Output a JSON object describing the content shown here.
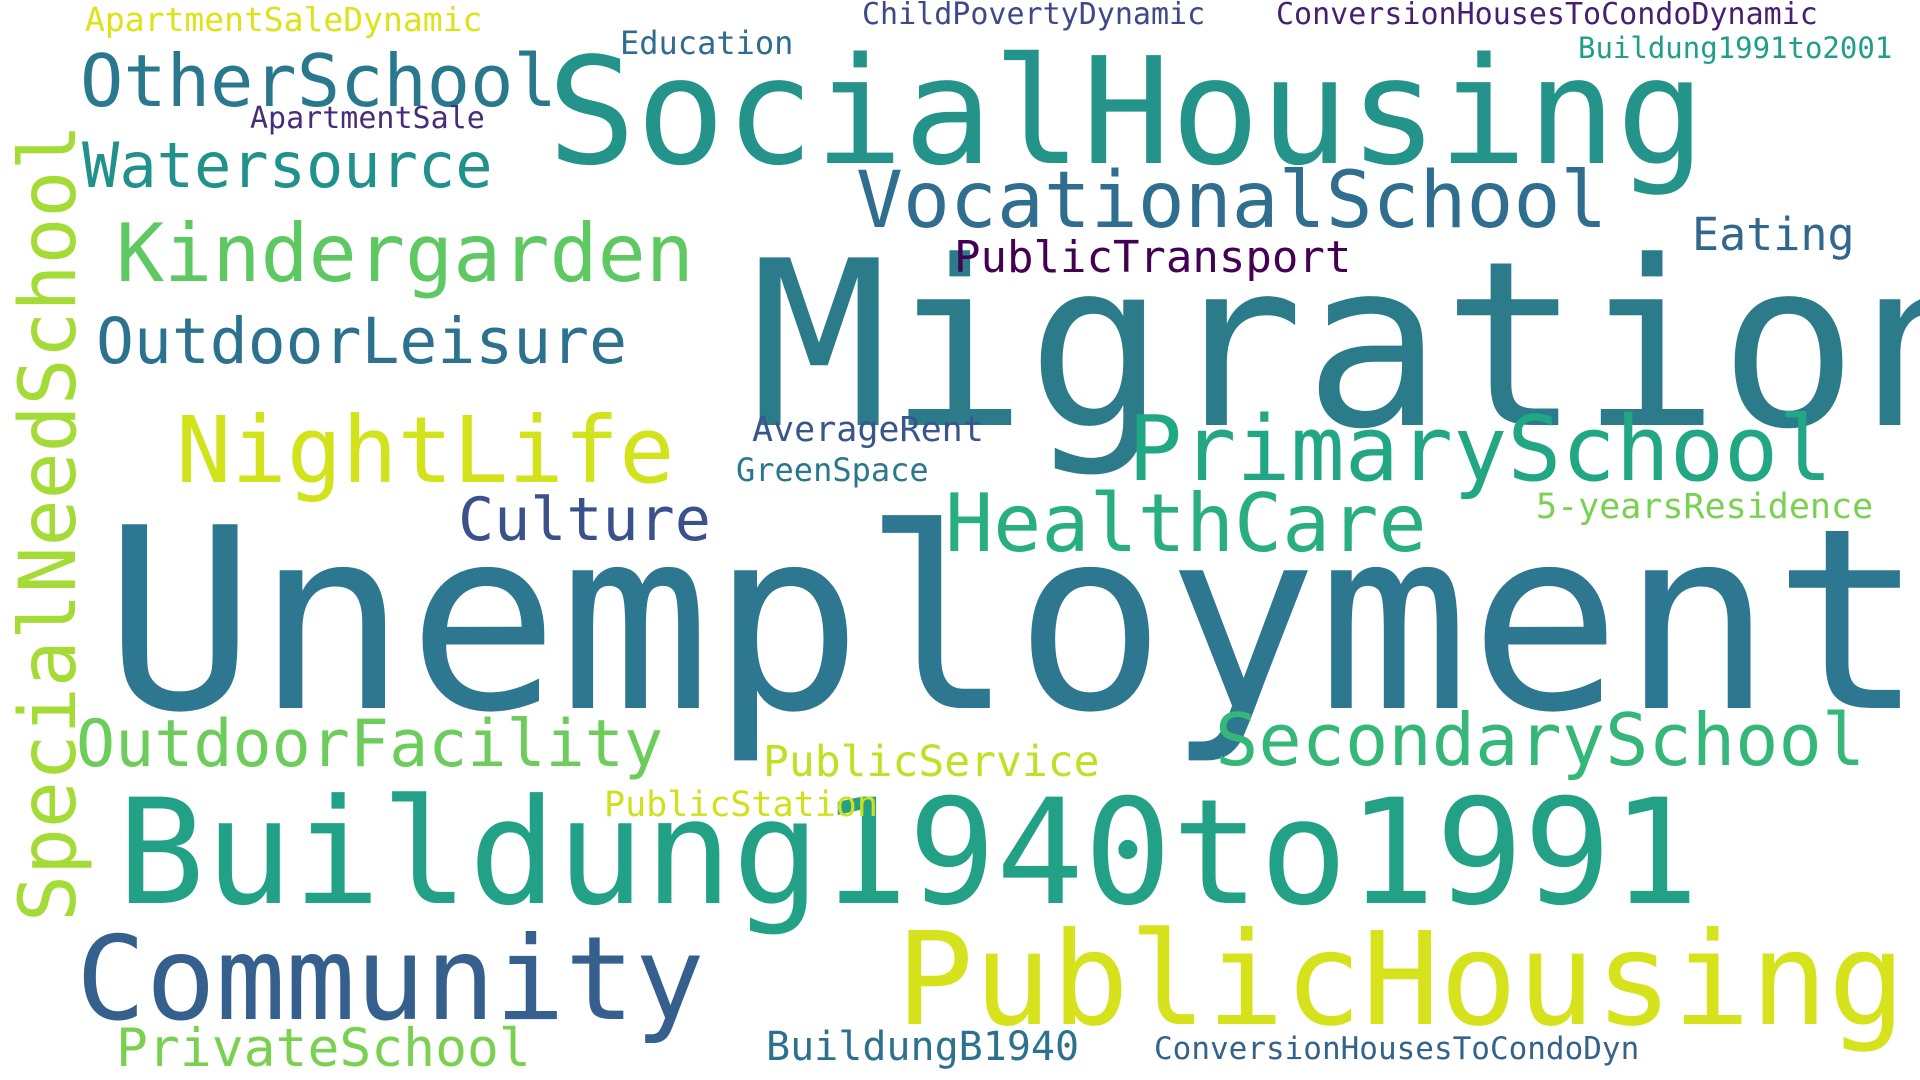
{
  "palette": {
    "migration": "#2c7b8b",
    "unemployment": "#2d7790",
    "socialhousing": "#24938a",
    "buildung1940": "#22a187",
    "publichousing": "#d6e31c",
    "community": "#35608d",
    "vocational": "#2f6e8e",
    "primaryschool": "#22a785",
    "healthcare": "#28ae80",
    "secondary": "#35b779",
    "kindergarden": "#5ec962",
    "outdoorleisure": "#2c728e",
    "nightlife": "#d2e21b",
    "outdoorfacility": "#6ccd5a",
    "special": "#a5db36",
    "otherschool": "#2a788e",
    "watersource": "#21918c",
    "privateschool": "#7ad151",
    "culture": "#3b518b",
    "publictransport": "#440154",
    "eating": "#31668e",
    "publicservice": "#c2df23",
    "publicstation": "#d0e11c",
    "buildungB1940": "#2c728e",
    "convdyn": "#33638d",
    "averagerent": "#39568c",
    "greenspace": "#2a788e",
    "fiveyears": "#7ad151",
    "apartmentsaledyn": "#dde318",
    "apartmentsale": "#472c7a",
    "childpoverty": "#3e4989",
    "convhousesdyn": "#481f70",
    "education": "#2f6c8e",
    "buildung1991": "#1f9f88"
  },
  "words": {
    "migration": "Migration",
    "unemployment": "Unemployment",
    "socialhousing": "SocialHousing",
    "buildung1940": "Buildung1940to1991",
    "publichousing": "PublicHousing",
    "community": "Community",
    "vocational": "VocationalSchool",
    "primaryschool": "PrimarySchool",
    "healthcare": "HealthCare",
    "secondary": "SecondarySchool",
    "kindergarden": "Kindergarden",
    "outdoorleisure": "OutdoorLeisure",
    "nightlife": "NightLife",
    "outdoorfacility": "OutdoorFacility",
    "special": "SpecialNeedSchool",
    "otherschool": "OtherSchool",
    "watersource": "Watersource",
    "privateschool": "PrivateSchool",
    "culture": "Culture",
    "publictransport": "PublicTransport",
    "eating": "Eating",
    "publicservice": "PublicService",
    "publicstation": "PublicStation",
    "buildungB1940": "BuildungB1940",
    "convdyn": "ConversionHousesToCondoDyn",
    "averagerent": "AverageRent",
    "greenspace": "GreenSpace",
    "fiveyears": "5-yearsResidence",
    "apartmentsaledyn": "ApartmentSaleDynamic",
    "apartmentsale": "ApartmentSale",
    "childpoverty": "ChildPovertyDynamic",
    "convhousesdyn": "ConversionHousesToCondoDynamic",
    "education": "Education",
    "buildung1991": "Buildung1991to2001"
  }
}
